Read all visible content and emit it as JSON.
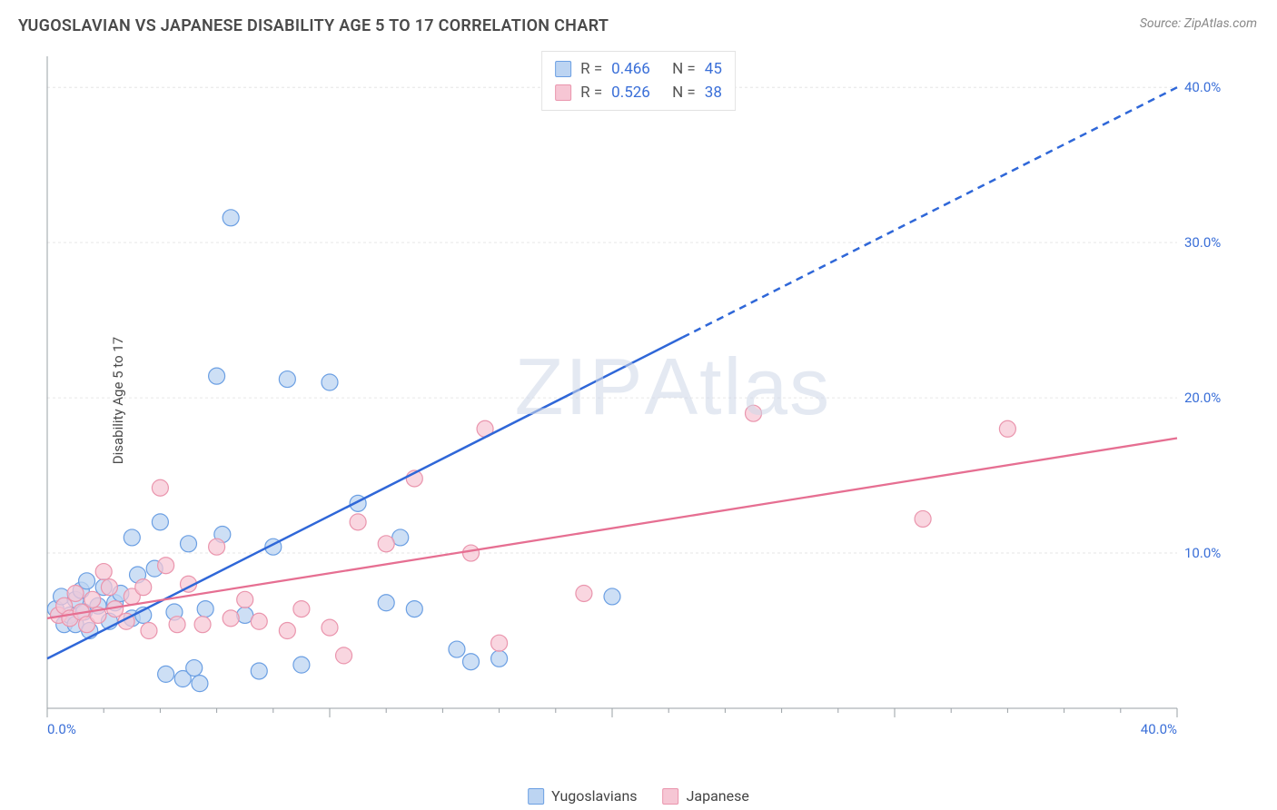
{
  "title": "YUGOSLAVIAN VS JAPANESE DISABILITY AGE 5 TO 17 CORRELATION CHART",
  "source_prefix": "Source: ",
  "source": "ZipAtlas.com",
  "ylabel": "Disability Age 5 to 17",
  "watermark_a": "ZIP",
  "watermark_b": "Atlas",
  "chart": {
    "type": "scatter-with-regression",
    "background_color": "#ffffff",
    "xlim": [
      0,
      40
    ],
    "ylim": [
      0,
      42
    ],
    "x_ticks": {
      "major_step": 10,
      "minor_step": 2,
      "labels": [
        {
          "v": 0,
          "t": "0.0%"
        },
        {
          "v": 40,
          "t": "40.0%"
        }
      ],
      "label_color": "#3a6fd8",
      "label_fontsize": 15
    },
    "y_ticks": {
      "gridlines": [
        10,
        20,
        30,
        40
      ],
      "labels": [
        {
          "v": 10,
          "t": "10.0%"
        },
        {
          "v": 20,
          "t": "20.0%"
        },
        {
          "v": 30,
          "t": "30.0%"
        },
        {
          "v": 40,
          "t": "40.0%"
        }
      ],
      "grid_color": "#e6e6e6",
      "grid_dash": "3,3",
      "label_color": "#3a6fd8",
      "label_fontsize": 15
    },
    "axis_color": "#9aa0a6",
    "marker_radius": 9,
    "marker_stroke_width": 1.2,
    "series": [
      {
        "name": "Yugoslavians",
        "fill": "#bcd4f2",
        "stroke": "#6b9fe3",
        "fill_opacity": 0.75,
        "points": [
          [
            0.3,
            6.4
          ],
          [
            0.5,
            7.2
          ],
          [
            0.6,
            5.4
          ],
          [
            0.8,
            6.0
          ],
          [
            1.0,
            7.0
          ],
          [
            1.0,
            5.4
          ],
          [
            1.2,
            7.6
          ],
          [
            1.3,
            6.2
          ],
          [
            1.4,
            8.2
          ],
          [
            1.5,
            5.0
          ],
          [
            1.8,
            6.6
          ],
          [
            2.0,
            7.8
          ],
          [
            2.2,
            5.6
          ],
          [
            2.4,
            6.8
          ],
          [
            2.6,
            7.4
          ],
          [
            3.0,
            11.0
          ],
          [
            3.0,
            5.8
          ],
          [
            3.2,
            8.6
          ],
          [
            3.4,
            6.0
          ],
          [
            3.8,
            9.0
          ],
          [
            4.0,
            12.0
          ],
          [
            4.2,
            2.2
          ],
          [
            4.5,
            6.2
          ],
          [
            4.8,
            1.9
          ],
          [
            5.0,
            10.6
          ],
          [
            5.2,
            2.6
          ],
          [
            5.4,
            1.6
          ],
          [
            5.6,
            6.4
          ],
          [
            6.0,
            21.4
          ],
          [
            6.2,
            11.2
          ],
          [
            6.5,
            31.6
          ],
          [
            7.0,
            6.0
          ],
          [
            7.5,
            2.4
          ],
          [
            8.0,
            10.4
          ],
          [
            8.5,
            21.2
          ],
          [
            9.0,
            2.8
          ],
          [
            10.0,
            21.0
          ],
          [
            11.0,
            13.2
          ],
          [
            12.0,
            6.8
          ],
          [
            12.5,
            11.0
          ],
          [
            13.0,
            6.4
          ],
          [
            14.5,
            3.8
          ],
          [
            15.0,
            3.0
          ],
          [
            16.0,
            3.2
          ],
          [
            20.0,
            7.2
          ]
        ],
        "trend": {
          "x1": 0,
          "y1": 3.2,
          "x2": 40,
          "y2": 40.0,
          "solid_until_x": 22.5,
          "color": "#2f67d8",
          "width": 2.5,
          "dash": "8,6"
        }
      },
      {
        "name": "Japanese",
        "fill": "#f6c6d4",
        "stroke": "#ea95ad",
        "fill_opacity": 0.72,
        "points": [
          [
            0.4,
            6.0
          ],
          [
            0.6,
            6.6
          ],
          [
            0.8,
            5.8
          ],
          [
            1.0,
            7.4
          ],
          [
            1.2,
            6.2
          ],
          [
            1.4,
            5.4
          ],
          [
            1.6,
            7.0
          ],
          [
            1.8,
            6.0
          ],
          [
            2.0,
            8.8
          ],
          [
            2.2,
            7.8
          ],
          [
            2.4,
            6.4
          ],
          [
            2.8,
            5.6
          ],
          [
            3.0,
            7.2
          ],
          [
            3.4,
            7.8
          ],
          [
            3.6,
            5.0
          ],
          [
            4.0,
            14.2
          ],
          [
            4.2,
            9.2
          ],
          [
            4.6,
            5.4
          ],
          [
            5.0,
            8.0
          ],
          [
            5.5,
            5.4
          ],
          [
            6.0,
            10.4
          ],
          [
            6.5,
            5.8
          ],
          [
            7.0,
            7.0
          ],
          [
            7.5,
            5.6
          ],
          [
            8.5,
            5.0
          ],
          [
            9.0,
            6.4
          ],
          [
            10.0,
            5.2
          ],
          [
            10.5,
            3.4
          ],
          [
            11.0,
            12.0
          ],
          [
            12.0,
            10.6
          ],
          [
            13.0,
            14.8
          ],
          [
            15.0,
            10.0
          ],
          [
            15.5,
            18.0
          ],
          [
            16.0,
            4.2
          ],
          [
            19.0,
            7.4
          ],
          [
            25.0,
            19.0
          ],
          [
            31.0,
            12.2
          ],
          [
            34.0,
            18.0
          ]
        ],
        "trend": {
          "x1": 0,
          "y1": 5.8,
          "x2": 40,
          "y2": 17.4,
          "solid_until_x": 40,
          "color": "#e66f92",
          "width": 2.3,
          "dash": ""
        }
      }
    ],
    "stats": [
      {
        "swatch_fill": "#bcd4f2",
        "swatch_stroke": "#6b9fe3",
        "r_label": "R =",
        "r": "0.466",
        "n_label": "N =",
        "n": "45"
      },
      {
        "swatch_fill": "#f6c6d4",
        "swatch_stroke": "#ea95ad",
        "r_label": "R =",
        "r": "0.526",
        "n_label": "N =",
        "n": "38"
      }
    ],
    "legend": [
      {
        "swatch_fill": "#bcd4f2",
        "swatch_stroke": "#6b9fe3",
        "label": "Yugoslavians"
      },
      {
        "swatch_fill": "#f6c6d4",
        "swatch_stroke": "#ea95ad",
        "label": "Japanese"
      }
    ]
  }
}
